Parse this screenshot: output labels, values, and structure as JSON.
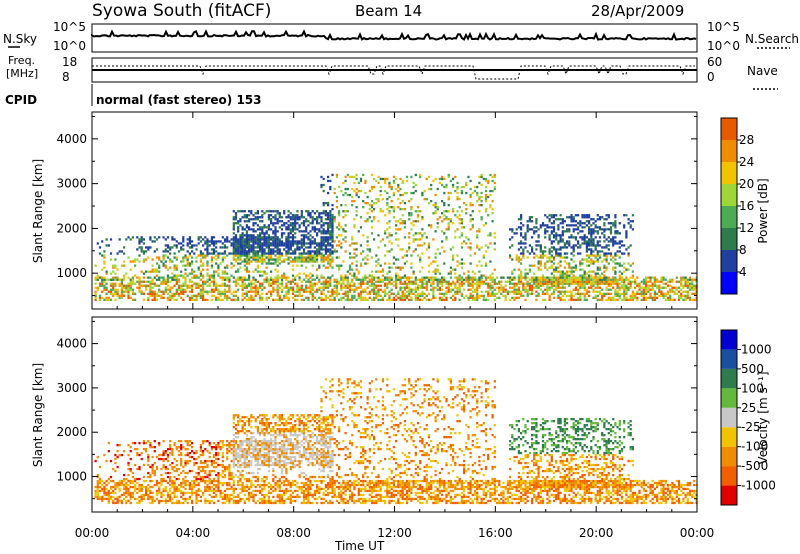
{
  "header": {
    "station": "Syowa South (fitACF)",
    "beam": "Beam 14",
    "date": "28/Apr/2009"
  },
  "noise_panel": {
    "left_label": "N.Sky",
    "right_label": "N.Search",
    "left_ticks": [
      "10^5",
      "10^0"
    ],
    "right_ticks": [
      "10^5",
      "10^0"
    ]
  },
  "freq_panel": {
    "left_label_1": "Freq.",
    "left_label_2": "[MHz]",
    "right_label": "Nave",
    "left_ticks": [
      "18",
      "8"
    ],
    "right_ticks": [
      "60",
      "0"
    ]
  },
  "cpid": {
    "label": "CPID",
    "value": "normal (fast stereo) 153"
  },
  "colors": {
    "power_scale": [
      "#0000ff",
      "#2040a0",
      "#2e7b4e",
      "#4daa55",
      "#9ed63a",
      "#f0c400",
      "#f08c00",
      "#e85a00",
      "#e00000"
    ],
    "velocity_scale": [
      "#0000d0",
      "#1a4fa0",
      "#2e7b4e",
      "#64b83c",
      "#c8c8c8",
      "#f0c400",
      "#f08c00",
      "#f06000",
      "#e00000"
    ]
  },
  "chart_data": [
    {
      "type": "heatmap",
      "name": "power",
      "ylabel": "Slant Range [km]",
      "yticks": [
        "1000",
        "2000",
        "3000",
        "4000"
      ],
      "ylim": [
        200,
        4600
      ],
      "xlim": [
        0,
        24
      ],
      "colorbar_label": "Power [dB]",
      "colorbar_ticks": [
        "4",
        "8",
        "12",
        "16",
        "20",
        "24",
        "28"
      ],
      "colorbar_range": [
        0,
        30
      ]
    },
    {
      "type": "heatmap",
      "name": "velocity",
      "ylabel": "Slant Range [km]",
      "yticks": [
        "1000",
        "2000",
        "3000",
        "4000"
      ],
      "ylim": [
        200,
        4600
      ],
      "xlim": [
        0,
        24
      ],
      "xlabel": "Time UT",
      "xticks": [
        "00:00",
        "04:00",
        "08:00",
        "12:00",
        "16:00",
        "20:00",
        "00:00"
      ],
      "colorbar_label": "Velocity [m s⁻¹]",
      "colorbar_ticks": [
        "1000",
        "500",
        "100",
        "25",
        "-25",
        "-100",
        "-500",
        "-1000"
      ]
    }
  ]
}
